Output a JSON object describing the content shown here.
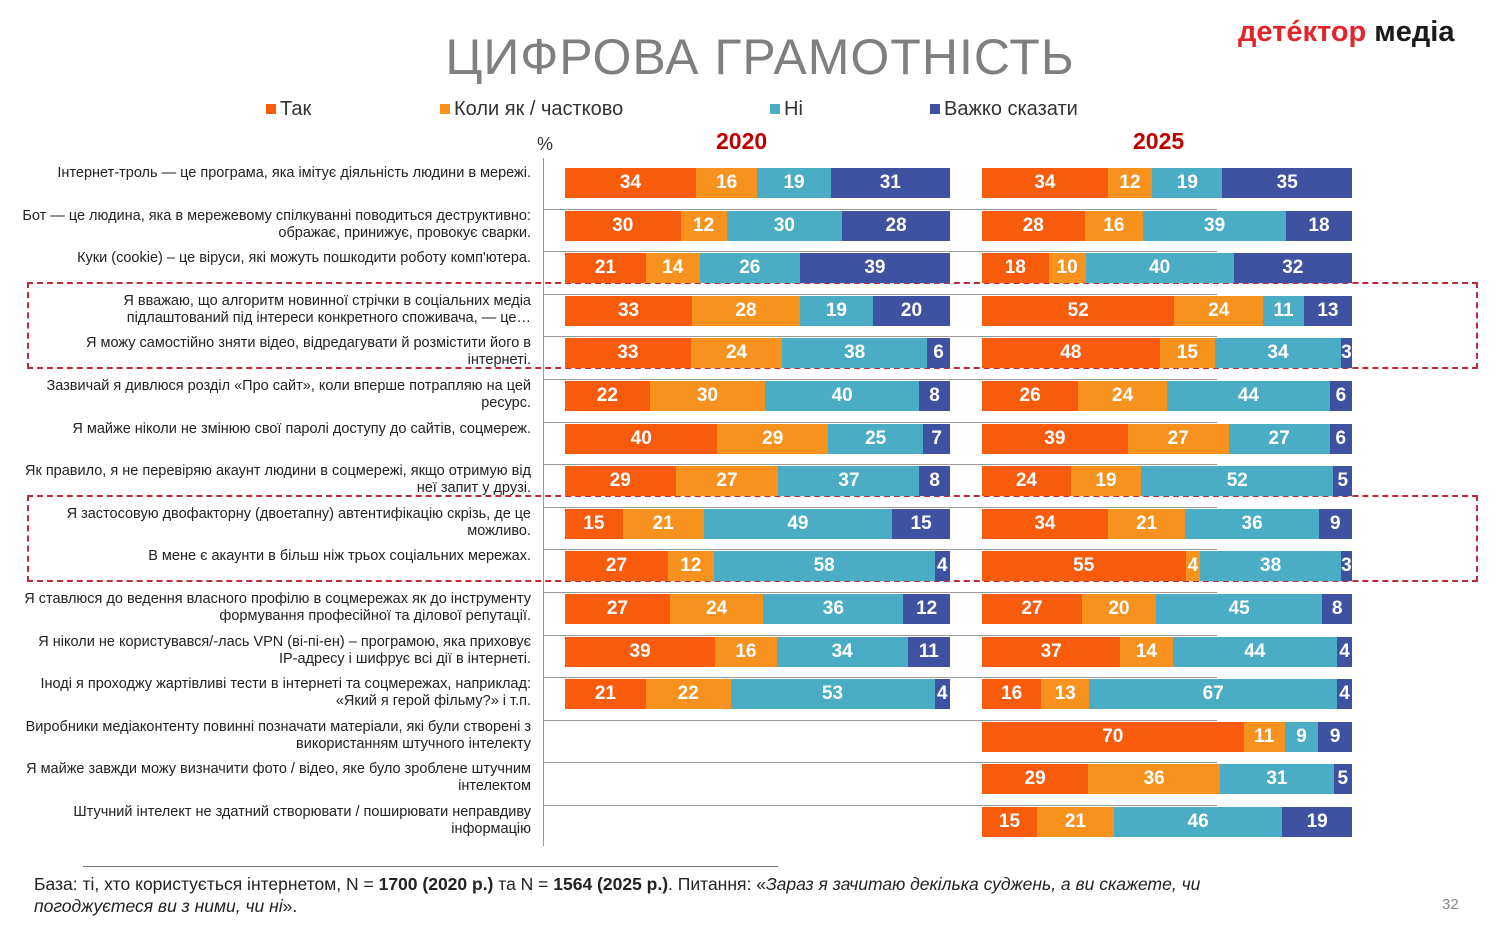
{
  "title": "ЦИФРОВА ГРАМОТНІСТЬ",
  "logo": {
    "part1": "детéктор",
    "part2": " медіа"
  },
  "chart_data": {
    "type": "bar",
    "stacked": true,
    "orientation": "horizontal",
    "unit": "%",
    "legend": [
      "Так",
      "Коли як / частково",
      "Ні",
      "Важко сказати"
    ],
    "colors": [
      "#F95B0C",
      "#F7921E",
      "#4BACC6",
      "#3F51A1"
    ],
    "panels": [
      "2020",
      "2025"
    ],
    "categories": [
      "Інтернет-троль — це програма, яка імітує діяльність людини в мережі.",
      "Бот — це людина, яка в мережевому спілкуванні поводиться деструктивно: ображає, принижує, провокує сварки.",
      "Куки (cookie) – це віруси, які можуть пошкодити роботу комп'ютера.",
      "Я вважаю, що алгоритм новинної стрічки в соціальних медіа підлаштований під інтереси конкретного споживача, — це…",
      "Я можу самостійно зняти відео, відредагувати й розмістити його в інтернеті.",
      "Зазвичай я дивлюся розділ «Про сайт», коли вперше потрапляю на цей ресурс.",
      "Я майже ніколи не змінюю свої паролі доступу до сайтів, соцмереж.",
      "Як правило, я не перевіряю акаунт людини в соцмережі, якщо отримую від неї запит у друзі.",
      "Я застосовую двофакторну (двоетапну) автентифікацію скрізь, де це можливо.",
      "В мене є акаунти в більш ніж трьох соціальних мережах.",
      "Я ставлюся до ведення власного профілю в соцмережах як до інструменту формування професійної та ділової репутації.",
      "Я ніколи не користувався/-лась VPN (ві-пі-ен) – програмою, яка приховує IP-адресу і шифрує всі дії в інтернеті.",
      "Іноді я проходжу жартівливі тести в інтернеті та соцмережах, наприклад: «Який я герой фільму?» і т.п.",
      "Виробники медіаконтенту повинні позначати матеріали, які були створені з використанням штучного інтелекту",
      "Я майже завжди можу визначити фото / відео, яке було зроблене штучним інтелектом",
      "Штучний інтелект не здатний створювати / поширювати неправдиву інформацію"
    ],
    "series2020": [
      [
        34,
        16,
        19,
        31
      ],
      [
        30,
        12,
        30,
        28
      ],
      [
        21,
        14,
        26,
        39
      ],
      [
        33,
        28,
        19,
        20
      ],
      [
        33,
        24,
        38,
        6
      ],
      [
        22,
        30,
        40,
        8
      ],
      [
        40,
        29,
        25,
        7
      ],
      [
        29,
        27,
        37,
        8
      ],
      [
        15,
        21,
        49,
        15
      ],
      [
        27,
        12,
        58,
        4
      ],
      [
        27,
        24,
        36,
        12
      ],
      [
        39,
        16,
        34,
        11
      ],
      [
        21,
        22,
        53,
        4
      ],
      null,
      null,
      null
    ],
    "series2025": [
      [
        34,
        12,
        19,
        35
      ],
      [
        28,
        16,
        39,
        18
      ],
      [
        18,
        10,
        40,
        32
      ],
      [
        52,
        24,
        11,
        13
      ],
      [
        48,
        15,
        34,
        3
      ],
      [
        26,
        24,
        44,
        6
      ],
      [
        39,
        27,
        27,
        6
      ],
      [
        24,
        19,
        52,
        5
      ],
      [
        34,
        21,
        36,
        9
      ],
      [
        55,
        4,
        38,
        3
      ],
      [
        27,
        20,
        45,
        8
      ],
      [
        37,
        14,
        44,
        4
      ],
      [
        16,
        13,
        67,
        4
      ],
      [
        70,
        11,
        9,
        9
      ],
      [
        29,
        36,
        31,
        5
      ],
      [
        15,
        21,
        46,
        19
      ]
    ],
    "highlighted_groups": [
      [
        3,
        4
      ],
      [
        8,
        9
      ]
    ]
  },
  "footer": {
    "base_prefix": "База: ті, хто користується інтернетом, N = ",
    "n2020": "1700 (2020 р.)",
    "mid": " та N = ",
    "n2025": "1564 (2025 р.)",
    "q_prefix": ". Питання: «",
    "question": "Зараз я зачитаю декілька суджень, а ви скажете, чи погоджуєтеся ви з ними, чи ні",
    "q_suffix": "»."
  },
  "page_number": "32"
}
